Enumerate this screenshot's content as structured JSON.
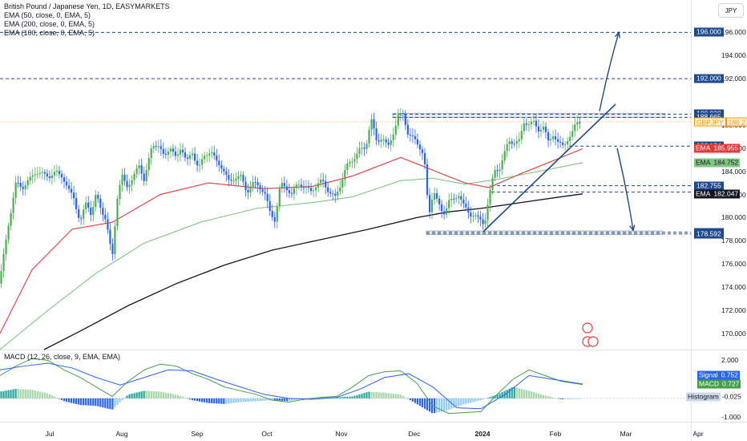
{
  "legend": {
    "title": "British Pound / Japanese Yen, 1D, EASYMARKETS",
    "ema1": "EMA (50, close, 0, EMA, 5)",
    "ema2": "EMA (200, close, 0, EMA, 5)",
    "ema3": "EMA (100, close, 0, EMA, 5)",
    "macd": "MACD (12, 26, close, 9, EMA, EMA)"
  },
  "currency_button": "JPY",
  "colors": {
    "up": "#26a69a",
    "up_candle": "#4caf50",
    "down": "#2962ff",
    "ema50": "#e53935",
    "ema100": "#81c784",
    "ema200": "#131722",
    "level_line": "#1e4a8c",
    "trend_line": "#1e4a8c",
    "macd_line": "#43a047",
    "signal_line": "#2962ff",
    "price_line": "#ff9800"
  },
  "chart_data": {
    "type": "candlestick",
    "symbol": "GBPJPY",
    "timeframe": "1D",
    "x_labels": [
      "Jul",
      "Aug",
      "Sep",
      "Oct",
      "Nov",
      "Dec",
      "2024",
      "Feb",
      "Mar",
      "Apr"
    ],
    "y_ticks": [
      "196.000",
      "194.000",
      "192.000",
      "188.000",
      "186.000",
      "184.000",
      "182.000",
      "180.000",
      "178.000",
      "176.000",
      "174.000",
      "172.000",
      "170.000"
    ],
    "ylim": [
      168.6,
      198.8
    ],
    "close_path": [
      [
        0,
        174.6
      ],
      [
        10,
        179.2
      ],
      [
        20,
        183.0
      ],
      [
        28,
        182.6
      ],
      [
        36,
        183.2
      ],
      [
        45,
        184.0
      ],
      [
        55,
        183.7
      ],
      [
        62,
        183.6
      ],
      [
        70,
        183.9
      ],
      [
        78,
        183.6
      ],
      [
        85,
        182.4
      ],
      [
        92,
        181.8
      ],
      [
        100,
        179.5
      ],
      [
        108,
        181.5
      ],
      [
        114,
        180.2
      ],
      [
        120,
        182.0
      ],
      [
        125,
        181.0
      ],
      [
        132,
        179.8
      ],
      [
        140,
        176.5
      ],
      [
        146,
        181.6
      ],
      [
        152,
        183.6
      ],
      [
        158,
        182.7
      ],
      [
        166,
        183.4
      ],
      [
        174,
        184.6
      ],
      [
        180,
        183.2
      ],
      [
        190,
        186.3
      ],
      [
        197,
        186.3
      ],
      [
        205,
        185.2
      ],
      [
        212,
        186.2
      ],
      [
        220,
        185.0
      ],
      [
        226,
        186.2
      ],
      [
        233,
        184.8
      ],
      [
        240,
        185.6
      ],
      [
        248,
        184.3
      ],
      [
        256,
        185.4
      ],
      [
        263,
        185.8
      ],
      [
        270,
        184.8
      ],
      [
        278,
        184.3
      ],
      [
        286,
        183.0
      ],
      [
        294,
        183.5
      ],
      [
        300,
        183.6
      ],
      [
        308,
        182.2
      ],
      [
        316,
        183.0
      ],
      [
        323,
        182.7
      ],
      [
        330,
        182.2
      ],
      [
        337,
        180.4
      ],
      [
        343,
        179.8
      ],
      [
        350,
        182.9
      ],
      [
        357,
        182.6
      ],
      [
        364,
        182.0
      ],
      [
        372,
        183.0
      ],
      [
        380,
        182.6
      ],
      [
        388,
        182.3
      ],
      [
        395,
        182.8
      ],
      [
        402,
        183.2
      ],
      [
        410,
        182.3
      ],
      [
        418,
        181.7
      ],
      [
        425,
        182.9
      ],
      [
        432,
        184.4
      ],
      [
        440,
        185.0
      ],
      [
        448,
        185.8
      ],
      [
        456,
        186.0
      ],
      [
        463,
        188.6
      ],
      [
        470,
        186.5
      ],
      [
        477,
        187.0
      ],
      [
        484,
        186.0
      ],
      [
        490,
        187.2
      ],
      [
        497,
        188.8
      ],
      [
        503,
        188.9
      ],
      [
        509,
        187.3
      ],
      [
        516,
        186.8
      ],
      [
        523,
        186.2
      ],
      [
        529,
        185.4
      ],
      [
        535,
        180.0
      ],
      [
        541,
        182.5
      ],
      [
        548,
        181.0
      ],
      [
        553,
        180.1
      ],
      [
        560,
        181.6
      ],
      [
        567,
        181.4
      ],
      [
        573,
        182.1
      ],
      [
        580,
        180.9
      ],
      [
        586,
        180.1
      ],
      [
        592,
        180.4
      ],
      [
        598,
        179.8
      ],
      [
        604,
        179.3
      ],
      [
        610,
        181.9
      ],
      [
        617,
        184.0
      ],
      [
        623,
        184.2
      ],
      [
        629,
        185.5
      ],
      [
        635,
        186.6
      ],
      [
        642,
        186.5
      ],
      [
        648,
        186.6
      ],
      [
        654,
        188.3
      ],
      [
        660,
        188.1
      ],
      [
        666,
        188.2
      ],
      [
        672,
        187.6
      ],
      [
        678,
        187.8
      ],
      [
        684,
        186.6
      ],
      [
        690,
        187.2
      ],
      [
        696,
        186.4
      ],
      [
        702,
        186.3
      ],
      [
        708,
        186.7
      ],
      [
        713,
        187.0
      ],
      [
        719,
        188.4
      ],
      [
        725,
        188.27
      ]
    ],
    "ema50": [
      [
        0,
        170.0
      ],
      [
        40,
        175.5
      ],
      [
        90,
        179.0
      ],
      [
        140,
        179.6
      ],
      [
        200,
        182.0
      ],
      [
        260,
        183.0
      ],
      [
        330,
        182.5
      ],
      [
        390,
        182.7
      ],
      [
        440,
        183.6
      ],
      [
        500,
        185.2
      ],
      [
        540,
        184.1
      ],
      [
        580,
        183.0
      ],
      [
        610,
        182.6
      ],
      [
        650,
        183.8
      ],
      [
        700,
        185.2
      ],
      [
        727,
        185.95
      ]
    ],
    "ema100": [
      [
        0,
        168.6
      ],
      [
        60,
        172.0
      ],
      [
        120,
        175.2
      ],
      [
        180,
        177.8
      ],
      [
        250,
        179.6
      ],
      [
        320,
        180.8
      ],
      [
        390,
        181.3
      ],
      [
        440,
        181.8
      ],
      [
        500,
        183.2
      ],
      [
        540,
        183.4
      ],
      [
        580,
        182.9
      ],
      [
        620,
        183.3
      ],
      [
        680,
        184.1
      ],
      [
        727,
        184.75
      ]
    ],
    "ema200": [
      [
        55,
        168.6
      ],
      [
        100,
        170.2
      ],
      [
        160,
        172.4
      ],
      [
        220,
        174.3
      ],
      [
        280,
        175.9
      ],
      [
        340,
        177.2
      ],
      [
        400,
        178.1
      ],
      [
        460,
        179.0
      ],
      [
        520,
        180.0
      ],
      [
        560,
        180.5
      ],
      [
        600,
        180.8
      ],
      [
        650,
        181.3
      ],
      [
        700,
        181.8
      ],
      [
        727,
        182.05
      ]
    ],
    "levels": [
      {
        "value": "196.000",
        "color": "#1e4a8c"
      },
      {
        "value": "192.000",
        "color": "#1e4a8c"
      },
      {
        "value": "188.938",
        "color": "#1e4a8c"
      },
      {
        "value": "188.665",
        "color": "#1e4a8c"
      },
      {
        "value": "186.174",
        "color": "#1e4a8c"
      },
      {
        "value": "182.755",
        "color": "#1e4a8c"
      },
      {
        "value": "182.199",
        "color": "#1e4a8c"
      },
      {
        "value": "178.738",
        "color": "#1e4a8c"
      },
      {
        "value": "178.592",
        "color": "#1e4a8c"
      }
    ],
    "price_labels": [
      {
        "name": "GBPJPY",
        "value": "188.273",
        "price": 188.273,
        "bg": "#ff9800",
        "fg": "#ffffff"
      },
      {
        "name": "EMA",
        "value": "185.955",
        "price": 185.955,
        "bg": "#e53935",
        "fg": "#ffffff"
      },
      {
        "name": "EMA",
        "value": "184.752",
        "price": 184.752,
        "bg": "#81c784",
        "fg": "#131722"
      },
      {
        "name": "EMA",
        "value": "182.047",
        "price": 182.047,
        "bg": "#131722",
        "fg": "#ffffff"
      }
    ],
    "zones": [
      {
        "from": 188.65,
        "to": 189.0
      },
      {
        "from": 178.55,
        "to": 178.85
      }
    ],
    "trendline": [
      [
        603,
        178.8
      ],
      [
        768,
        189.8
      ]
    ],
    "arrows": [
      {
        "from": [
          748,
          189.2
        ],
        "to": [
          772,
          196.0
        ]
      },
      {
        "from": [
          770,
          186.0
        ],
        "to": [
          790,
          178.9
        ]
      }
    ],
    "macd": {
      "axis_ticks": [
        "2.000",
        "1.000",
        "-1.000"
      ],
      "ylim": [
        -1.15,
        2.4
      ],
      "histogram_label": "Histogram",
      "histogram_value": "-0.025",
      "signal_label": "Signal",
      "signal_value": "0.752",
      "macd_label": "MACD",
      "macd_value": "0.727",
      "macd_line": [
        [
          0,
          1.2
        ],
        [
          20,
          1.7
        ],
        [
          40,
          2.1
        ],
        [
          60,
          2.0
        ],
        [
          80,
          1.5
        ],
        [
          100,
          1.1
        ],
        [
          120,
          0.6
        ],
        [
          140,
          0.1
        ],
        [
          160,
          0.9
        ],
        [
          180,
          1.5
        ],
        [
          200,
          1.8
        ],
        [
          220,
          1.7
        ],
        [
          240,
          1.3
        ],
        [
          260,
          1.0
        ],
        [
          280,
          0.6
        ],
        [
          300,
          0.4
        ],
        [
          320,
          0.2
        ],
        [
          340,
          -0.1
        ],
        [
          360,
          -0.2
        ],
        [
          380,
          -0.05
        ],
        [
          400,
          0.05
        ],
        [
          420,
          0.1
        ],
        [
          440,
          0.6
        ],
        [
          460,
          1.2
        ],
        [
          480,
          1.4
        ],
        [
          500,
          1.45
        ],
        [
          520,
          0.8
        ],
        [
          540,
          -0.4
        ],
        [
          560,
          -0.8
        ],
        [
          580,
          -0.75
        ],
        [
          600,
          -0.7
        ],
        [
          620,
          0.2
        ],
        [
          640,
          1.0
        ],
        [
          660,
          1.5
        ],
        [
          680,
          1.2
        ],
        [
          700,
          0.9
        ],
        [
          727,
          0.727
        ]
      ],
      "signal_line": [
        [
          0,
          1.5
        ],
        [
          30,
          1.7
        ],
        [
          60,
          1.85
        ],
        [
          90,
          1.6
        ],
        [
          120,
          1.1
        ],
        [
          150,
          0.7
        ],
        [
          180,
          1.1
        ],
        [
          210,
          1.5
        ],
        [
          240,
          1.45
        ],
        [
          270,
          1.0
        ],
        [
          300,
          0.6
        ],
        [
          330,
          0.2
        ],
        [
          360,
          0.0
        ],
        [
          390,
          -0.05
        ],
        [
          420,
          0.05
        ],
        [
          450,
          0.5
        ],
        [
          480,
          1.1
        ],
        [
          510,
          1.3
        ],
        [
          540,
          0.6
        ],
        [
          570,
          -0.5
        ],
        [
          600,
          -0.55
        ],
        [
          630,
          0.2
        ],
        [
          660,
          1.2
        ],
        [
          690,
          1.0
        ],
        [
          727,
          0.752
        ]
      ],
      "histogram": [
        [
          0,
          0.35
        ],
        [
          20,
          0.5
        ],
        [
          40,
          0.45
        ],
        [
          60,
          0.25
        ],
        [
          80,
          -0.15
        ],
        [
          100,
          -0.35
        ],
        [
          120,
          -0.4
        ],
        [
          140,
          -0.6
        ],
        [
          160,
          0.2
        ],
        [
          180,
          0.4
        ],
        [
          200,
          0.35
        ],
        [
          220,
          0.2
        ],
        [
          240,
          -0.1
        ],
        [
          260,
          -0.25
        ],
        [
          280,
          -0.3
        ],
        [
          300,
          -0.2
        ],
        [
          320,
          -0.15
        ],
        [
          340,
          -0.1
        ],
        [
          360,
          -0.15
        ],
        [
          380,
          0.0
        ],
        [
          400,
          0.05
        ],
        [
          420,
          0.05
        ],
        [
          440,
          0.1
        ],
        [
          460,
          0.35
        ],
        [
          480,
          0.3
        ],
        [
          500,
          0.2
        ],
        [
          520,
          -0.3
        ],
        [
          540,
          -0.8
        ],
        [
          560,
          -0.6
        ],
        [
          580,
          -0.3
        ],
        [
          600,
          -0.1
        ],
        [
          620,
          0.2
        ],
        [
          640,
          0.6
        ],
        [
          660,
          0.4
        ],
        [
          680,
          0.15
        ],
        [
          700,
          -0.05
        ],
        [
          727,
          -0.025
        ]
      ]
    }
  }
}
